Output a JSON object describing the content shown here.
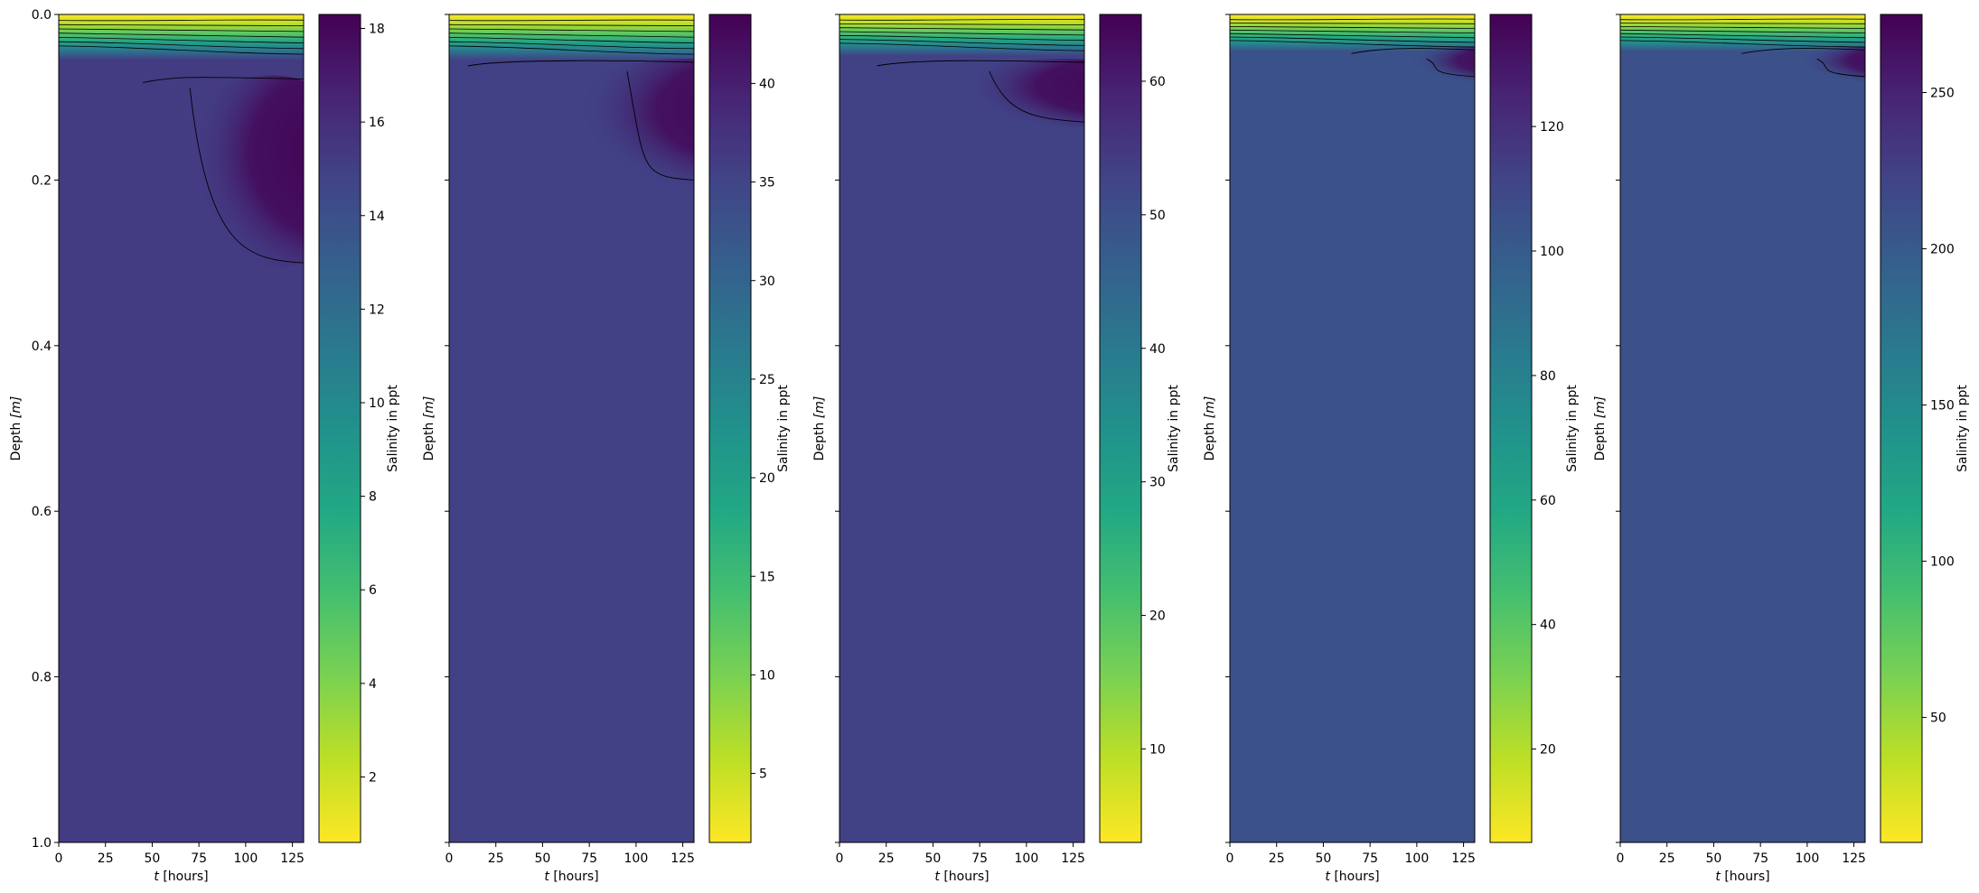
{
  "chart_data": [
    {
      "type": "heatmap",
      "xlabel_var": "t",
      "xlabel_unit": "[hours]",
      "ylabel_text": "Depth",
      "ylabel_unit": "[m]",
      "x_ticks": [
        0,
        25,
        50,
        75,
        100,
        125
      ],
      "x_tick_labels": [
        "0",
        "25",
        "50",
        "75",
        "100",
        "125"
      ],
      "y_ticks": [
        0.0,
        0.2,
        0.4,
        0.6,
        0.8,
        1.0
      ],
      "y_tick_labels": [
        "0.0",
        "0.2",
        "0.4",
        "0.6",
        "0.8",
        "1.0"
      ],
      "show_y_tick_labels": true,
      "xlim": [
        0,
        131
      ],
      "ylim": [
        0,
        1
      ],
      "colorbar_label": "Salinity in ppt",
      "colorbar_ticks": [
        2,
        4,
        6,
        8,
        10,
        12,
        14,
        16,
        18
      ],
      "colorbar_tick_labels": [
        "2",
        "4",
        "6",
        "8",
        "10",
        "12",
        "14",
        "16",
        "18"
      ],
      "colorbar_range": [
        0.6,
        18.3
      ],
      "bulk_value": 15.2,
      "max_value": 18.3,
      "surface_value": 0.6,
      "mixed_depth": 0.055,
      "hot_region": {
        "t_start": 45,
        "t_mid": 75,
        "d_top": 0.08,
        "d_bottom": 0.3
      }
    },
    {
      "type": "heatmap",
      "xlabel_var": "t",
      "xlabel_unit": "[hours]",
      "ylabel_text": "Depth",
      "ylabel_unit": "[m]",
      "x_ticks": [
        0,
        25,
        50,
        75,
        100,
        125
      ],
      "x_tick_labels": [
        "0",
        "25",
        "50",
        "75",
        "100",
        "125"
      ],
      "y_ticks": [
        0.0,
        0.2,
        0.4,
        0.6,
        0.8,
        1.0
      ],
      "y_tick_labels": [
        "0.0",
        "0.2",
        "0.4",
        "0.6",
        "0.8",
        "1.0"
      ],
      "show_y_tick_labels": false,
      "xlim": [
        0,
        131
      ],
      "ylim": [
        0,
        1
      ],
      "colorbar_label": "Salinity in ppt",
      "colorbar_ticks": [
        5,
        10,
        15,
        20,
        25,
        30,
        35,
        40
      ],
      "colorbar_tick_labels": [
        "5",
        "10",
        "15",
        "20",
        "25",
        "30",
        "35",
        "40"
      ],
      "colorbar_range": [
        1.5,
        43.5
      ],
      "bulk_value": 35.5,
      "max_value": 43.5,
      "surface_value": 1.5,
      "mixed_depth": 0.055,
      "hot_region": {
        "t_start": 10,
        "t_mid": 100,
        "d_top": 0.06,
        "d_bottom": 0.2
      }
    },
    {
      "type": "heatmap",
      "xlabel_var": "t",
      "xlabel_unit": "[hours]",
      "ylabel_text": "Depth",
      "ylabel_unit": "[m]",
      "x_ticks": [
        0,
        25,
        50,
        75,
        100,
        125
      ],
      "x_tick_labels": [
        "0",
        "25",
        "50",
        "75",
        "100",
        "125"
      ],
      "y_ticks": [
        0.0,
        0.2,
        0.4,
        0.6,
        0.8,
        1.0
      ],
      "y_tick_labels": [
        "0.0",
        "0.2",
        "0.4",
        "0.6",
        "0.8",
        "1.0"
      ],
      "show_y_tick_labels": false,
      "xlim": [
        0,
        131
      ],
      "ylim": [
        0,
        1
      ],
      "colorbar_label": "Salinity in ppt",
      "colorbar_ticks": [
        10,
        20,
        30,
        40,
        50,
        60
      ],
      "colorbar_tick_labels": [
        "10",
        "20",
        "30",
        "40",
        "50",
        "60"
      ],
      "colorbar_range": [
        3,
        65
      ],
      "bulk_value": 53,
      "max_value": 65,
      "surface_value": 3,
      "mixed_depth": 0.05,
      "hot_region": {
        "t_start": 20,
        "t_mid": 85,
        "d_top": 0.06,
        "d_bottom": 0.13
      }
    },
    {
      "type": "heatmap",
      "xlabel_var": "t",
      "xlabel_unit": "[hours]",
      "ylabel_text": "Depth",
      "ylabel_unit": "[m]",
      "x_ticks": [
        0,
        25,
        50,
        75,
        100,
        125
      ],
      "x_tick_labels": [
        "0",
        "25",
        "50",
        "75",
        "100",
        "125"
      ],
      "y_ticks": [
        0.0,
        0.2,
        0.4,
        0.6,
        0.8,
        1.0
      ],
      "y_tick_labels": [
        "0.0",
        "0.2",
        "0.4",
        "0.6",
        "0.8",
        "1.0"
      ],
      "show_y_tick_labels": false,
      "xlim": [
        0,
        131
      ],
      "ylim": [
        0,
        1
      ],
      "colorbar_label": "Salinity in ppt",
      "colorbar_ticks": [
        20,
        40,
        60,
        80,
        100,
        120
      ],
      "colorbar_tick_labels": [
        "20",
        "40",
        "60",
        "80",
        "100",
        "120"
      ],
      "colorbar_range": [
        5,
        138
      ],
      "bulk_value": 105,
      "max_value": 138,
      "surface_value": 5,
      "mixed_depth": 0.045,
      "hot_region": {
        "t_start": 65,
        "t_mid": 110,
        "d_top": 0.045,
        "d_bottom": 0.075
      }
    },
    {
      "type": "heatmap",
      "xlabel_var": "t",
      "xlabel_unit": "[hours]",
      "ylabel_text": "Depth",
      "ylabel_unit": "[m]",
      "x_ticks": [
        0,
        25,
        50,
        75,
        100,
        125
      ],
      "x_tick_labels": [
        "0",
        "25",
        "50",
        "75",
        "100",
        "125"
      ],
      "y_ticks": [
        0.0,
        0.2,
        0.4,
        0.6,
        0.8,
        1.0
      ],
      "y_tick_labels": [
        "0.0",
        "0.2",
        "0.4",
        "0.6",
        "0.8",
        "1.0"
      ],
      "show_y_tick_labels": false,
      "xlim": [
        0,
        131
      ],
      "ylim": [
        0,
        1
      ],
      "colorbar_label": "Salinity in ppt",
      "colorbar_ticks": [
        50,
        100,
        150,
        200,
        250
      ],
      "colorbar_tick_labels": [
        "50",
        "100",
        "150",
        "200",
        "250"
      ],
      "colorbar_range": [
        10,
        275
      ],
      "bulk_value": 210,
      "max_value": 275,
      "surface_value": 10,
      "mixed_depth": 0.045,
      "hot_region": {
        "t_start": 65,
        "t_mid": 110,
        "d_top": 0.045,
        "d_bottom": 0.075
      }
    }
  ]
}
